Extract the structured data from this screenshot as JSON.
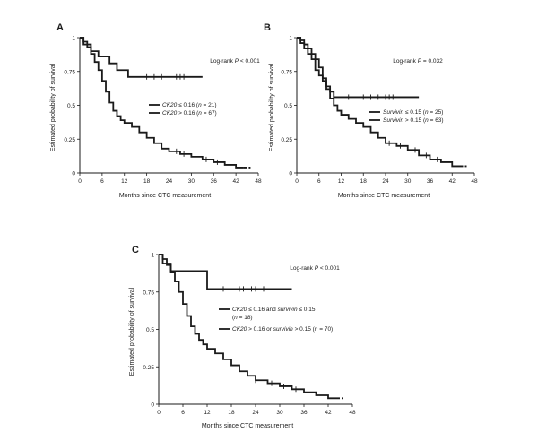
{
  "chart_data": [
    {
      "panel": "A",
      "type": "line",
      "chart_kind": "kaplan-meier",
      "ylabel": "Estimated probability of survival",
      "xlabel": "Months  since CTC measurement",
      "xlim": [
        0,
        48
      ],
      "ylim": [
        0,
        1
      ],
      "xticks": [
        0,
        6,
        12,
        18,
        24,
        30,
        36,
        42,
        48
      ],
      "yticks": [
        0,
        0.25,
        0.5,
        0.75,
        1
      ],
      "annotation": "Log-rank P < 0.001",
      "legend": [
        "CK20 ≤ 0.16 (n = 21)",
        "CK20 > 0.16 (n = 67)"
      ],
      "legend_position": "right",
      "series": [
        {
          "name": "CK20 ≤ 0.16 (n = 21)",
          "color": "#1a1a1a",
          "x": [
            0,
            1,
            3,
            5,
            8,
            10,
            13,
            33
          ],
          "y": [
            1,
            0.95,
            0.9,
            0.86,
            0.81,
            0.76,
            0.71,
            0.71
          ],
          "censor_x": [
            18,
            20,
            22,
            26,
            27,
            28
          ]
        },
        {
          "name": "CK20 > 0.16 (n = 67)",
          "color": "#1a1a1a",
          "x": [
            0,
            1,
            2,
            3,
            4,
            5,
            6,
            7,
            8,
            9,
            10,
            11,
            12,
            14,
            16,
            18,
            20,
            22,
            24,
            27,
            30,
            33,
            36,
            39,
            42,
            44
          ],
          "y": [
            1,
            0.97,
            0.93,
            0.88,
            0.82,
            0.76,
            0.68,
            0.6,
            0.52,
            0.46,
            0.42,
            0.39,
            0.37,
            0.34,
            0.3,
            0.26,
            0.22,
            0.18,
            0.16,
            0.14,
            0.12,
            0.1,
            0.08,
            0.06,
            0.04,
            0.04
          ],
          "censor_x": [
            26,
            28,
            31,
            34,
            37
          ]
        }
      ]
    },
    {
      "panel": "B",
      "type": "line",
      "chart_kind": "kaplan-meier",
      "ylabel": "Estimated probability of survival",
      "xlabel": "Months  since CTC measurement",
      "xlim": [
        0,
        48
      ],
      "ylim": [
        0,
        1
      ],
      "xticks": [
        0,
        6,
        12,
        18,
        24,
        30,
        36,
        42,
        48
      ],
      "yticks": [
        0,
        0.25,
        0.5,
        0.75,
        1
      ],
      "annotation": "Log-rank P = 0.032",
      "legend": [
        "Survivin ≤ 0.15 (n = 25)",
        "Survivin > 0.15 (n = 63)"
      ],
      "legend_position": "right",
      "series": [
        {
          "name": "Survivin ≤ 0.15 (n = 25)",
          "color": "#1a1a1a",
          "x": [
            0,
            1,
            2,
            3,
            4,
            5,
            6,
            7,
            8,
            9,
            10,
            33
          ],
          "y": [
            1,
            0.96,
            0.92,
            0.88,
            0.84,
            0.76,
            0.72,
            0.68,
            0.64,
            0.6,
            0.56,
            0.56
          ],
          "censor_x": [
            14,
            18,
            20,
            22,
            24,
            25,
            26
          ]
        },
        {
          "name": "Survivin > 0.15 (n = 63)",
          "color": "#1a1a1a",
          "x": [
            0,
            1,
            2,
            3,
            4,
            5,
            6,
            7,
            8,
            9,
            10,
            11,
            12,
            14,
            16,
            18,
            20,
            22,
            24,
            27,
            30,
            33,
            36,
            39,
            42,
            44
          ],
          "y": [
            1,
            0.98,
            0.95,
            0.92,
            0.88,
            0.84,
            0.78,
            0.7,
            0.62,
            0.55,
            0.5,
            0.46,
            0.43,
            0.4,
            0.37,
            0.34,
            0.3,
            0.26,
            0.22,
            0.2,
            0.17,
            0.13,
            0.1,
            0.08,
            0.05,
            0.05
          ],
          "censor_x": [
            25,
            28,
            32,
            35,
            38
          ]
        }
      ]
    },
    {
      "panel": "C",
      "type": "line",
      "chart_kind": "kaplan-meier",
      "ylabel": "Estimated probability of survival",
      "xlabel": "Months  since  CTC  measurement",
      "xlim": [
        0,
        48
      ],
      "ylim": [
        0,
        1
      ],
      "xticks": [
        0,
        6,
        12,
        18,
        24,
        30,
        36,
        42,
        48
      ],
      "yticks": [
        0,
        0.25,
        0.5,
        0.75,
        1
      ],
      "annotation": "Log-rank P < 0.001",
      "legend": [
        "CK20 ≤ 0.16 and survivin ≤ 0.15 (n = 18)",
        "CK20 > 0.16 or survivin > 0.15 (n = 70)"
      ],
      "legend_position": "right",
      "series": [
        {
          "name": "CK20 ≤ 0.16 and survivin ≤ 0.15 (n = 18)",
          "color": "#1a1a1a",
          "x": [
            0,
            1,
            3,
            9,
            12,
            33
          ],
          "y": [
            1,
            0.94,
            0.89,
            0.89,
            0.77,
            0.77
          ],
          "censor_x": [
            16,
            20,
            21,
            23,
            24,
            26
          ]
        },
        {
          "name": "CK20 > 0.16 or survivin > 0.15 (n = 70)",
          "color": "#1a1a1a",
          "x": [
            0,
            1,
            2,
            3,
            4,
            5,
            6,
            7,
            8,
            9,
            10,
            11,
            12,
            14,
            16,
            18,
            20,
            22,
            24,
            27,
            30,
            33,
            36,
            39,
            42,
            44
          ],
          "y": [
            1,
            0.97,
            0.93,
            0.88,
            0.82,
            0.75,
            0.67,
            0.59,
            0.52,
            0.47,
            0.43,
            0.4,
            0.37,
            0.34,
            0.3,
            0.26,
            0.22,
            0.19,
            0.16,
            0.14,
            0.12,
            0.1,
            0.08,
            0.06,
            0.04,
            0.04
          ],
          "censor_x": [
            24,
            28,
            31,
            34,
            37
          ]
        }
      ]
    }
  ]
}
